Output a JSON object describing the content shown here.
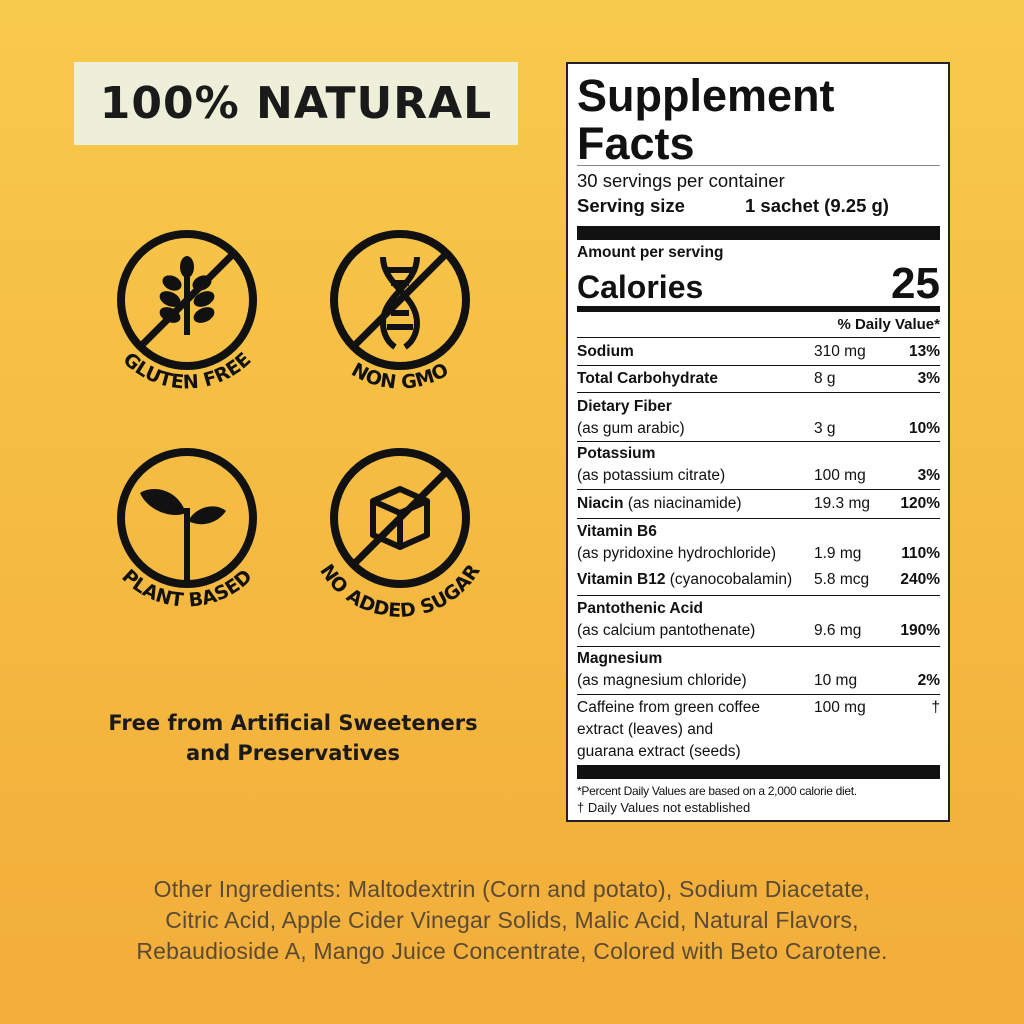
{
  "badge": "100% NATURAL",
  "icons": [
    {
      "label": "GLUTEN FREE",
      "icon": "wheat-icon"
    },
    {
      "label": "NON GMO",
      "icon": "dna-icon"
    },
    {
      "label": "PLANT BASED",
      "icon": "sprout-icon"
    },
    {
      "label": "NO ADDED SUGAR",
      "icon": "sugar-cube-icon"
    }
  ],
  "free_from": [
    "Free from Artificial Sweeteners",
    "and Preservatives"
  ],
  "facts": {
    "title1": "Supplement",
    "title2": "Facts",
    "servings": "30 servings per container",
    "serving_size_label": "Serving size",
    "serving_size": "1 sachet (9.25 g)",
    "amount_per_serving": "Amount per serving",
    "calories_label": "Calories",
    "calories": "25",
    "dv_header": "% Daily Value*",
    "rows": [
      {
        "name": "Sodium",
        "amount": "310 mg",
        "dv": "13%"
      },
      {
        "name": "Total Carbohydrate",
        "amount": "8 g",
        "dv": "3%"
      },
      {
        "name": "Dietary Fiber",
        "sub": "(as gum arabic)",
        "amount": "3 g",
        "dv": "10%"
      },
      {
        "name": "Potassium",
        "sub": "(as potassium citrate)",
        "amount": "100 mg",
        "dv": "3%"
      },
      {
        "name": "Niacin",
        "sub": "(as niacinamide)",
        "amount": "19.3 mg",
        "dv": "120%"
      },
      {
        "name": "Vitamin B6",
        "sub": "(as pyridoxine hydrochloride)",
        "amount": "1.9 mg",
        "dv": "110%"
      },
      {
        "name": "Vitamin B12",
        "sub": "(cyanocobalamin)",
        "amount": "5.8 mcg",
        "dv": "240%"
      },
      {
        "name": "Pantothenic Acid",
        "sub": "(as calcium pantothenate)",
        "amount": "9.6 mg",
        "dv": "190%"
      },
      {
        "name": "Magnesium",
        "sub": "(as magnesium chloride)",
        "amount": "10 mg",
        "dv": "2%"
      },
      {
        "lines": [
          "Caffeine from green coffee",
          "extract (leaves) and",
          "guarana extract (seeds)"
        ],
        "amount": "100 mg",
        "dv": "†"
      }
    ],
    "footnote1": "*Percent Daily Values are based on a 2,000 calorie diet.",
    "footnote2": "† Daily Values not established"
  },
  "other_ingredients": [
    "Other Ingredients: Maltodextrin (Corn and potato), Sodium Diacetate,",
    "Citric Acid, Apple Cider Vinegar Solids, Malic Acid, Natural Flavors,",
    "Rebaudioside A, Mango Juice Concentrate, Colored with Beto Carotene."
  ]
}
